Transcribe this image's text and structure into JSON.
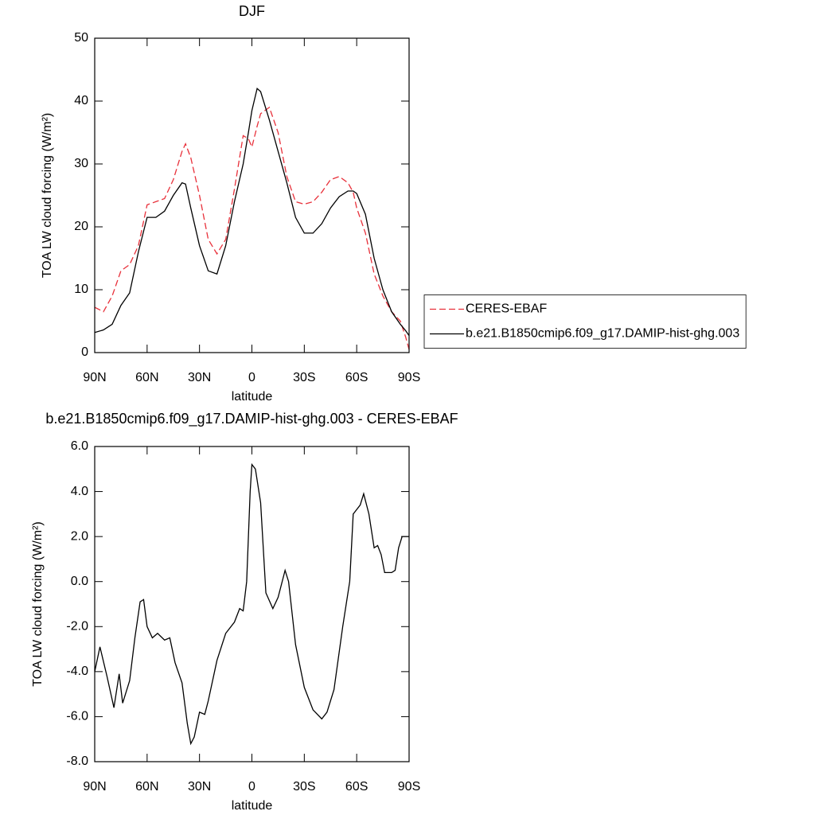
{
  "chart_data": [
    {
      "type": "line",
      "title": "DJF",
      "x_label": "latitude",
      "y_label": "TOA LW cloud forcing (W/m²)",
      "xlim": [
        90,
        -90
      ],
      "xticks": [
        {
          "value": 90,
          "label": "90N"
        },
        {
          "value": 60,
          "label": "60N"
        },
        {
          "value": 30,
          "label": "30N"
        },
        0,
        {
          "value": -30,
          "label": "30S"
        },
        {
          "value": -60,
          "label": "60S"
        },
        {
          "value": -90,
          "label": "90S"
        }
      ],
      "ylim": [
        0,
        50
      ],
      "yticks": [
        0,
        10,
        20,
        30,
        40,
        50
      ],
      "legend": "right",
      "x": [
        90,
        85,
        80,
        75,
        70,
        65,
        60,
        55,
        50,
        45,
        40,
        38,
        35,
        30,
        25,
        20,
        15,
        10,
        5,
        2,
        0,
        -3,
        -5,
        -10,
        -15,
        -20,
        -25,
        -30,
        -35,
        -40,
        -45,
        -50,
        -55,
        -58,
        -60,
        -65,
        -70,
        -75,
        -80,
        -85,
        -88,
        -90
      ],
      "series": [
        {
          "name": "CERES-EBAF",
          "color": "#e8303a",
          "line_style": "dashed",
          "values": [
            7.2,
            6.5,
            9,
            13,
            14,
            17,
            23.5,
            24,
            24.5,
            27.5,
            32,
            33.2,
            31,
            25,
            18,
            15.7,
            18,
            26,
            34.5,
            34,
            32.7,
            36,
            38,
            39,
            35,
            28,
            24,
            23.6,
            24,
            25.5,
            27.5,
            28,
            27,
            25.5,
            23,
            19,
            12.5,
            9,
            6.5,
            5,
            2.5,
            0.5
          ]
        },
        {
          "name": "b.e21.B1850cmip6.f09_g17.DAMIP-hist-ghg.003",
          "color": "#000000",
          "line_style": "solid",
          "values": [
            3.2,
            3.6,
            4.5,
            7.5,
            9.5,
            16,
            21.5,
            21.5,
            22.5,
            25,
            27,
            26.8,
            23,
            17,
            13,
            12.5,
            17,
            24,
            30,
            35,
            38.5,
            42,
            41.5,
            37,
            32,
            27,
            21.5,
            19,
            19,
            20.5,
            23,
            24.8,
            25.7,
            25.7,
            25.3,
            22,
            15,
            10,
            6.5,
            4.5,
            3.5,
            2.7
          ]
        }
      ]
    },
    {
      "type": "line",
      "title": "b.e21.B1850cmip6.f09_g17.DAMIP-hist-ghg.003 - CERES-EBAF",
      "x_label": "latitude",
      "y_label": "TOA LW cloud forcing (W/m²)",
      "xlim": [
        90,
        -90
      ],
      "xticks": [
        {
          "value": 90,
          "label": "90N"
        },
        {
          "value": 60,
          "label": "60N"
        },
        {
          "value": 30,
          "label": "30N"
        },
        0,
        {
          "value": -30,
          "label": "30S"
        },
        {
          "value": -60,
          "label": "60S"
        },
        {
          "value": -90,
          "label": "90S"
        }
      ],
      "ylim": [
        -8,
        6
      ],
      "yticks": [
        {
          "value": -8,
          "label": "-8.0"
        },
        {
          "value": -6,
          "label": "-6.0"
        },
        {
          "value": -4,
          "label": "-4.0"
        },
        {
          "value": -2,
          "label": "-2.0"
        },
        {
          "value": 0,
          "label": "0.0"
        },
        {
          "value": 2,
          "label": "2.0"
        },
        {
          "value": 4,
          "label": "4.0"
        },
        {
          "value": 6,
          "label": "6.0"
        }
      ],
      "x": [
        90,
        87,
        83,
        79,
        76,
        74,
        70,
        67,
        64,
        62,
        60,
        57,
        54,
        50,
        47,
        44,
        40,
        37,
        35,
        33,
        30,
        27,
        25,
        20,
        15,
        10,
        7,
        5,
        3,
        1,
        0,
        -2,
        -5,
        -8,
        -12,
        -15,
        -19,
        -21,
        -25,
        -30,
        -35,
        -40,
        -43,
        -47,
        -52,
        -56,
        -58,
        -62,
        -64,
        -67,
        -70,
        -72,
        -74,
        -76,
        -80,
        -82,
        -84,
        -86,
        -90
      ],
      "series": [
        {
          "color": "#000000",
          "line_style": "solid",
          "values": [
            -4.0,
            -2.9,
            -4.2,
            -5.6,
            -4.1,
            -5.4,
            -4.4,
            -2.5,
            -0.9,
            -0.8,
            -2.0,
            -2.5,
            -2.3,
            -2.6,
            -2.5,
            -3.6,
            -4.5,
            -6.3,
            -7.2,
            -6.9,
            -5.8,
            -5.9,
            -5.3,
            -3.5,
            -2.3,
            -1.8,
            -1.2,
            -1.3,
            0.0,
            4.0,
            5.2,
            5.0,
            3.5,
            -0.5,
            -1.2,
            -0.7,
            0.5,
            0.0,
            -2.8,
            -4.7,
            -5.7,
            -6.1,
            -5.8,
            -4.8,
            -2.0,
            0.0,
            3.0,
            3.4,
            3.9,
            3.0,
            1.5,
            1.6,
            1.2,
            0.4,
            0.4,
            0.5,
            1.5,
            2.0,
            2.0
          ]
        }
      ]
    }
  ]
}
